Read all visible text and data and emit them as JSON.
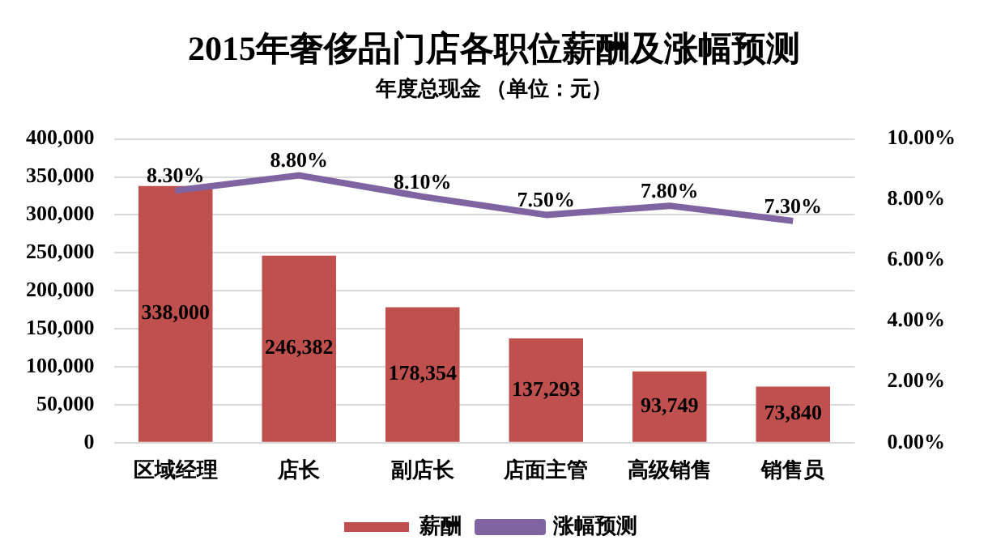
{
  "chart_data": {
    "type": "bar",
    "title": "2015年奢侈品门店各职位薪酬及涨幅预测",
    "subtitle": "年度总现金 （单位：元）",
    "categories": [
      "区域经理",
      "店长",
      "副店长",
      "店面主管",
      "高级销售",
      "销售员"
    ],
    "series": [
      {
        "name": "薪酬",
        "color": "#c0504d",
        "values": [
          338000,
          246382,
          178354,
          137293,
          93749,
          73840
        ],
        "value_labels": [
          "338,000",
          "246,382",
          "178,354",
          "137,293",
          "93,749",
          "73,840"
        ]
      },
      {
        "name": "涨幅预测",
        "type": "line",
        "axis": "y2",
        "color": "#8064a2",
        "values": [
          8.3,
          8.8,
          8.1,
          7.5,
          7.8,
          7.3
        ],
        "value_labels": [
          "8.30%",
          "8.80%",
          "8.10%",
          "7.50%",
          "7.80%",
          "7.30%"
        ]
      }
    ],
    "ylim": [
      0,
      400000
    ],
    "yticks": [
      0,
      {
        "value": 50000,
        "label": "50,000"
      },
      {
        "value": 100000,
        "label": "100,000"
      },
      {
        "value": 150000,
        "label": "150,000"
      },
      {
        "value": 200000,
        "label": "200,000"
      },
      {
        "value": 250000,
        "label": "250,000"
      },
      {
        "value": 300000,
        "label": "300,000"
      },
      {
        "value": 350000,
        "label": "350,000"
      },
      {
        "value": 400000,
        "label": "400,000"
      }
    ],
    "y2lim": [
      0,
      10
    ],
    "y2ticks": [
      {
        "value": 0,
        "label": "0.00%"
      },
      {
        "value": 2,
        "label": "2.00%"
      },
      {
        "value": 4,
        "label": "4.00%"
      },
      {
        "value": 6,
        "label": "6.00%"
      },
      {
        "value": 8,
        "label": "8.00%"
      },
      {
        "value": 10,
        "label": "10.00%"
      }
    ],
    "grid": "y",
    "legend": "bottom",
    "marker": "none",
    "line_style": "solid"
  }
}
